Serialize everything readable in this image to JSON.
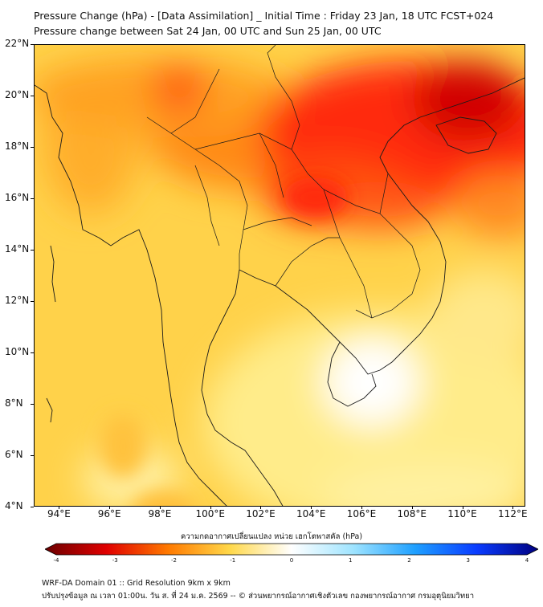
{
  "title": {
    "line1": "Pressure Change (hPa) - [Data Assimilation] _ Initial Time : Friday 23 Jan, 18 UTC FCST+024",
    "line2": "Pressure change between Sat 24 Jan, 00 UTC and Sun 25 Jan, 00 UTC"
  },
  "map": {
    "lon_range": [
      93,
      112.5
    ],
    "lat_range": [
      4,
      22
    ],
    "lat_labels": [
      "22°N",
      "20°N",
      "18°N",
      "16°N",
      "14°N",
      "12°N",
      "10°N",
      "8°N",
      "6°N",
      "4°N"
    ],
    "lon_labels": [
      "94°E",
      "96°E",
      "98°E",
      "100°E",
      "102°E",
      "104°E",
      "106°E",
      "108°E",
      "110°E",
      "112°E"
    ]
  },
  "colorbar": {
    "title": "ความกดอากาศเปลี่ยนแปลง หน่วย เฮกโตพาสคัล (hPa)",
    "tick_labels": [
      "-4",
      "-3",
      "-2",
      "-1",
      "0",
      "1",
      "2",
      "3",
      "4"
    ],
    "range": [
      -4,
      4
    ],
    "colors": {
      "neg4": "#6b0000",
      "neg3": "#e00000",
      "neg2": "#ff7a00",
      "neg1": "#ffd84a",
      "zero": "#ffffff",
      "pos1": "#9fe4ff",
      "pos2": "#1fa0ff",
      "pos3": "#0a3cff",
      "pos4": "#000080"
    }
  },
  "footer": {
    "line1": "WRF-DA Domain 01 :: Grid Resolution 9km x 9km",
    "line2": "ปรับปรุงข้อมูล ณ เวลา 01:00น. วัน ส. ที่ 24 ม.ค. 2569 -- © ส่วนพยากรณ์อากาศเชิงตัวเลข กองพยากรณ์อากาศ กรมอุตุนิยมวิทยา"
  }
}
